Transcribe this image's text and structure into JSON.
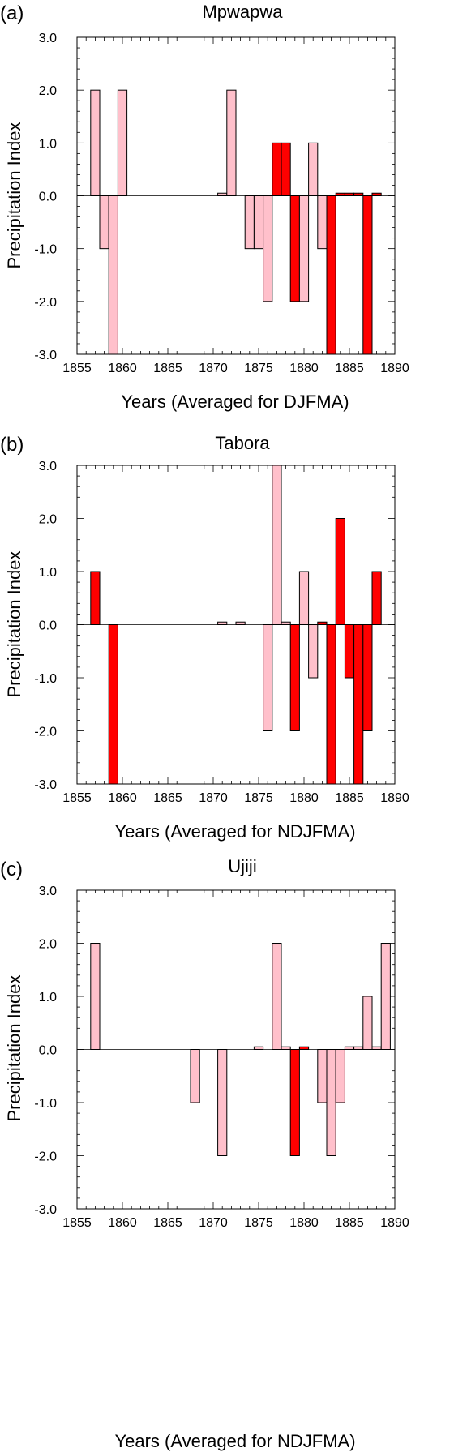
{
  "chart_data": [
    {
      "type": "bar",
      "panel_label": "(a)",
      "title": "Mpwapwa",
      "xlabel": "Years (Averaged for DJFMA)",
      "ylabel": "Precipitation Index",
      "xlim": [
        1855,
        1890
      ],
      "ylim": [
        -3.0,
        3.0
      ],
      "xticks": [
        "1855",
        "1860",
        "1865",
        "1870",
        "1875",
        "1880",
        "1885",
        "1890"
      ],
      "yticks": [
        "-3.0",
        "-2.0",
        "-1.0",
        "0.0",
        "1.0",
        "2.0",
        "3.0"
      ],
      "bar_colors": {
        "light": "#ffc0cb",
        "red": "#ff0000"
      },
      "bars": [
        {
          "x": 1857,
          "value": 2,
          "color": "light"
        },
        {
          "x": 1858,
          "value": -1,
          "color": "light"
        },
        {
          "x": 1859,
          "value": -3,
          "color": "light"
        },
        {
          "x": 1860,
          "value": 2,
          "color": "light"
        },
        {
          "x": 1871,
          "value": 0.05,
          "color": "light"
        },
        {
          "x": 1872,
          "value": 2,
          "color": "light"
        },
        {
          "x": 1874,
          "value": -1,
          "color": "light"
        },
        {
          "x": 1875,
          "value": -1,
          "color": "light"
        },
        {
          "x": 1876,
          "value": -2,
          "color": "light"
        },
        {
          "x": 1877,
          "value": 1,
          "color": "red"
        },
        {
          "x": 1878,
          "value": 1,
          "color": "red"
        },
        {
          "x": 1879,
          "value": -2,
          "color": "red"
        },
        {
          "x": 1880,
          "value": -2,
          "color": "light"
        },
        {
          "x": 1881,
          "value": 1,
          "color": "light"
        },
        {
          "x": 1882,
          "value": -1,
          "color": "light"
        },
        {
          "x": 1883,
          "value": -3,
          "color": "red"
        },
        {
          "x": 1884,
          "value": 0.05,
          "color": "red"
        },
        {
          "x": 1885,
          "value": 0.05,
          "color": "red"
        },
        {
          "x": 1886,
          "value": 0.05,
          "color": "red"
        },
        {
          "x": 1887,
          "value": -3,
          "color": "red"
        },
        {
          "x": 1888,
          "value": 0.05,
          "color": "red"
        }
      ]
    },
    {
      "type": "bar",
      "panel_label": "(b)",
      "title": "Tabora",
      "xlabel": "Years (Averaged for NDJFMA)",
      "ylabel": "Precipitation Index",
      "xlim": [
        1855,
        1890
      ],
      "ylim": [
        -3.0,
        3.0
      ],
      "xticks": [
        "1855",
        "1860",
        "1865",
        "1870",
        "1875",
        "1880",
        "1885",
        "1890"
      ],
      "yticks": [
        "-3.0",
        "-2.0",
        "-1.0",
        "0.0",
        "1.0",
        "2.0",
        "3.0"
      ],
      "bar_colors": {
        "light": "#ffc0cb",
        "red": "#ff0000"
      },
      "bars": [
        {
          "x": 1857,
          "value": 1,
          "color": "red"
        },
        {
          "x": 1859,
          "value": -3,
          "color": "red"
        },
        {
          "x": 1871,
          "value": 0.05,
          "color": "light"
        },
        {
          "x": 1873,
          "value": 0.05,
          "color": "light"
        },
        {
          "x": 1876,
          "value": -2,
          "color": "light"
        },
        {
          "x": 1877,
          "value": 3,
          "color": "light"
        },
        {
          "x": 1878,
          "value": 0.05,
          "color": "light"
        },
        {
          "x": 1879,
          "value": -2,
          "color": "red"
        },
        {
          "x": 1880,
          "value": 1,
          "color": "light"
        },
        {
          "x": 1881,
          "value": -1,
          "color": "light"
        },
        {
          "x": 1882,
          "value": 0.05,
          "color": "red"
        },
        {
          "x": 1883,
          "value": -3,
          "color": "red"
        },
        {
          "x": 1884,
          "value": 2,
          "color": "red"
        },
        {
          "x": 1885,
          "value": -1,
          "color": "red"
        },
        {
          "x": 1886,
          "value": -3,
          "color": "red"
        },
        {
          "x": 1887,
          "value": -2,
          "color": "red"
        },
        {
          "x": 1888,
          "value": 1,
          "color": "red"
        }
      ]
    },
    {
      "type": "bar",
      "panel_label": "(c)",
      "title": "Ujiji",
      "xlabel": "Years (Averaged for NDJFMA)",
      "ylabel": "Precipitation Index",
      "xlim": [
        1855,
        1890
      ],
      "ylim": [
        -3.0,
        3.0
      ],
      "xticks": [
        "1855",
        "1860",
        "1865",
        "1870",
        "1875",
        "1880",
        "1885",
        "1890"
      ],
      "yticks": [
        "-3.0",
        "-2.0",
        "-1.0",
        "0.0",
        "1.0",
        "2.0",
        "3.0"
      ],
      "bar_colors": {
        "light": "#ffc0cb",
        "red": "#ff0000"
      },
      "bars": [
        {
          "x": 1857,
          "value": 2,
          "color": "light"
        },
        {
          "x": 1868,
          "value": -1,
          "color": "light"
        },
        {
          "x": 1871,
          "value": -2,
          "color": "light"
        },
        {
          "x": 1875,
          "value": 0.05,
          "color": "light"
        },
        {
          "x": 1877,
          "value": 2,
          "color": "light"
        },
        {
          "x": 1878,
          "value": 0.05,
          "color": "light"
        },
        {
          "x": 1879,
          "value": -2,
          "color": "red"
        },
        {
          "x": 1880,
          "value": 0.05,
          "color": "red"
        },
        {
          "x": 1882,
          "value": -1,
          "color": "light"
        },
        {
          "x": 1883,
          "value": -2,
          "color": "light"
        },
        {
          "x": 1884,
          "value": -1,
          "color": "light"
        },
        {
          "x": 1885,
          "value": 0.05,
          "color": "light"
        },
        {
          "x": 1886,
          "value": 0.05,
          "color": "light"
        },
        {
          "x": 1887,
          "value": 1,
          "color": "light"
        },
        {
          "x": 1888,
          "value": 0.05,
          "color": "light"
        },
        {
          "x": 1889,
          "value": 2,
          "color": "light"
        }
      ]
    }
  ]
}
